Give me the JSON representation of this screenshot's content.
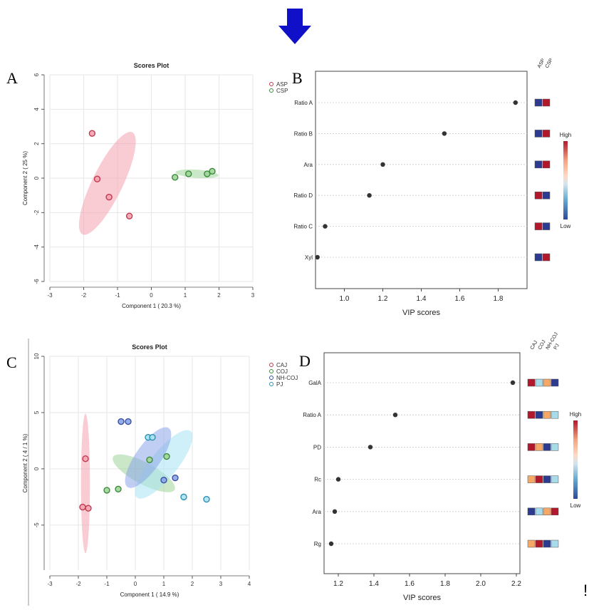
{
  "colors": {
    "arrow": "#1010c8",
    "asp": "#f4a3b0",
    "asp_edge": "#c0394f",
    "csp": "#9fd49a",
    "csp_edge": "#3b8a3b",
    "caj": "#f4a3b0",
    "coj": "#9fd49a",
    "nhcoj": "#8aa6e8",
    "pj": "#a9e3f4",
    "heat_high": "#b2182b",
    "heat_low": "#2c4a9a",
    "heat_red": "#b2182b",
    "heat_blue": "#2c3b8f",
    "heat_orange": "#f6a866",
    "heat_lightblue": "#a8dbe9"
  },
  "footer_mark": "!",
  "chart_data": [
    {
      "panel": "A",
      "type": "scatter",
      "title": "Scores Plot",
      "xlabel": "Component 1 ( 20.3 %)",
      "ylabel": "Component 2 ( 25 %)",
      "xlim": [
        -3,
        3
      ],
      "ylim": [
        -6,
        6
      ],
      "xticks": [
        "-3",
        "-2",
        "-1",
        "0",
        "1",
        "2",
        "3"
      ],
      "yticks": [
        "-6",
        "-4",
        "-2",
        "0",
        "2",
        "4",
        "6"
      ],
      "legend": [
        "ASP",
        "CSP"
      ],
      "series": [
        {
          "name": "ASP",
          "points": [
            [
              -1.75,
              2.6
            ],
            [
              -1.6,
              -0.05
            ],
            [
              -1.25,
              -1.1
            ],
            [
              -0.65,
              -2.2
            ]
          ]
        },
        {
          "name": "CSP",
          "points": [
            [
              0.7,
              0.05
            ],
            [
              1.1,
              0.25
            ],
            [
              1.65,
              0.25
            ],
            [
              1.8,
              0.4
            ]
          ]
        }
      ],
      "ellipses": [
        {
          "name": "ASP",
          "center": [
            -1.3,
            -0.3
          ],
          "rx": 3.3,
          "ry": 0.55,
          "angle": -64
        },
        {
          "name": "CSP",
          "center": [
            1.35,
            0.25
          ],
          "rx": 1.25,
          "ry": 0.15,
          "angle": 4
        }
      ]
    },
    {
      "panel": "B",
      "type": "dot",
      "xlabel": "VIP scores",
      "xlim": [
        0.85,
        1.95
      ],
      "xticks": [
        "1.0",
        "1.2",
        "1.4",
        "1.6",
        "1.8"
      ],
      "groups": [
        "ASP",
        "CSP"
      ],
      "features": [
        "Ratio A",
        "Ratio B",
        "Ara",
        "Ratio D",
        "Ratio C",
        "Xyl"
      ],
      "values": [
        1.89,
        1.52,
        1.2,
        1.13,
        0.9,
        0.86
      ],
      "heat": [
        [
          "blue",
          "red"
        ],
        [
          "blue",
          "red"
        ],
        [
          "blue",
          "red"
        ],
        [
          "red",
          "blue"
        ],
        [
          "red",
          "blue"
        ],
        [
          "blue",
          "red"
        ]
      ],
      "scale_high": "High",
      "scale_low": "Low"
    },
    {
      "panel": "C",
      "type": "scatter",
      "title": "Scores Plot",
      "xlabel": "Component 1 ( 14.9 %)",
      "ylabel": "Component 2 ( 4 / 1 %)",
      "xlim": [
        -3,
        4
      ],
      "ylim": [
        -9,
        10
      ],
      "xticks": [
        "-3",
        "-2",
        "-1",
        "0",
        "1",
        "2",
        "3",
        "4"
      ],
      "yticks": [
        "-5",
        "0",
        "5",
        "10"
      ],
      "legend": [
        "CAJ",
        "COJ",
        "NH-COJ",
        "PJ"
      ],
      "series": [
        {
          "name": "CAJ",
          "points": [
            [
              -1.75,
              0.9
            ],
            [
              -1.85,
              -3.4
            ],
            [
              -1.65,
              -3.5
            ]
          ]
        },
        {
          "name": "COJ",
          "points": [
            [
              -1.0,
              -1.9
            ],
            [
              -0.6,
              -1.8
            ],
            [
              0.5,
              0.8
            ],
            [
              1.1,
              1.1
            ]
          ]
        },
        {
          "name": "NH-COJ",
          "points": [
            [
              -0.5,
              4.2
            ],
            [
              -0.25,
              4.2
            ],
            [
              1.4,
              -0.8
            ],
            [
              1.0,
              -1.0
            ]
          ]
        },
        {
          "name": "PJ",
          "points": [
            [
              0.45,
              2.8
            ],
            [
              0.6,
              2.8
            ],
            [
              1.7,
              -2.5
            ],
            [
              2.5,
              -2.7
            ]
          ]
        }
      ],
      "ellipses": [
        {
          "name": "CAJ",
          "center": [
            -1.75,
            -1.3
          ],
          "rx": 6.2,
          "ry": 0.25,
          "angle": -90
        },
        {
          "name": "COJ",
          "center": [
            0.3,
            -0.4
          ],
          "rx": 3.1,
          "ry": 0.6,
          "angle": 28
        },
        {
          "name": "PJ",
          "center": [
            1.0,
            0.4
          ],
          "rx": 3.8,
          "ry": 0.75,
          "angle": -51
        },
        {
          "name": "NH-COJ",
          "center": [
            0.45,
            1.0
          ],
          "rx": 3.2,
          "ry": 0.7,
          "angle": -55
        }
      ]
    },
    {
      "panel": "D",
      "type": "dot",
      "xlabel": "VIP scores",
      "xlim": [
        1.12,
        2.22
      ],
      "xticks": [
        "1.2",
        "1.4",
        "1.6",
        "1.8",
        "2.0",
        "2.2"
      ],
      "groups": [
        "CAJ",
        "COJ",
        "NH-COJ",
        "PJ"
      ],
      "features": [
        "GalA",
        "Ratio A",
        "PD",
        "Rc",
        "Ara",
        "Rg"
      ],
      "values": [
        2.18,
        1.52,
        1.38,
        1.2,
        1.18,
        1.16
      ],
      "heat": [
        [
          "red",
          "lightblue",
          "orange",
          "blue"
        ],
        [
          "red",
          "blue",
          "orange",
          "lightblue"
        ],
        [
          "red",
          "orange",
          "blue",
          "lightblue"
        ],
        [
          "orange",
          "red",
          "blue",
          "lightblue"
        ],
        [
          "blue",
          "lightblue",
          "orange",
          "red"
        ],
        [
          "orange",
          "red",
          "blue",
          "lightblue"
        ]
      ],
      "scale_high": "High",
      "scale_low": "Low"
    }
  ]
}
